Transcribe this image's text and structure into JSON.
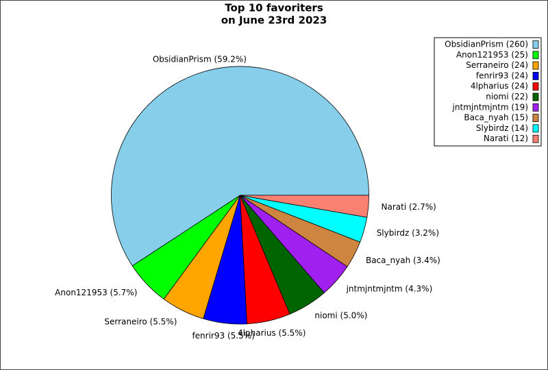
{
  "chart_data": {
    "type": "pie",
    "title": [
      "Top 10 favoriters",
      "on June 23rd 2023"
    ],
    "values": [
      260,
      25,
      24,
      24,
      24,
      22,
      19,
      15,
      14,
      12
    ],
    "labels": [
      "ObsidianPrism (59.2%)",
      "Anon121953 (5.7%)",
      "Serraneiro (5.5%)",
      "fenrir93 (5.5%)",
      "4lpharius (5.5%)",
      "niomi (5.0%)",
      "jntmjntmjntm (4.3%)",
      "Baca_nyah (3.4%)",
      "Slybirdz (3.2%)",
      "Narati (2.7%)"
    ],
    "value_labels": [
      "ObsidianPrism (260)",
      "Anon121953 (25)",
      "Serraneiro (24)",
      "fenrir93 (24)",
      "4lpharius (24)",
      "niomi (22)",
      "jntmjntmjntm (19)",
      "Baca_nyah (15)",
      "Slybirdz (14)",
      "Narati (12)"
    ],
    "colors": [
      "#87ceeb",
      "#00ff00",
      "#ffa500",
      "#0000ff",
      "#ff0000",
      "#006400",
      "#a020f0",
      "#cd853f",
      "#00ffff",
      "#fa8072"
    ],
    "legend": "upper right"
  }
}
